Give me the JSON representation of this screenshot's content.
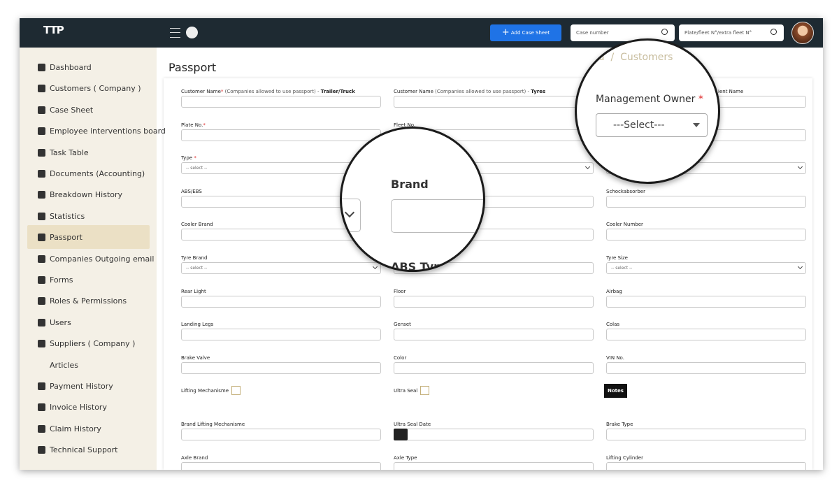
{
  "header": {
    "logo": "TTP",
    "add_button": "Add Case Sheet",
    "case_search_placeholder": "Case number",
    "plate_search_placeholder": "Plate/fleet N°/extra fleet N°"
  },
  "sidebar": {
    "items": [
      "Dashboard",
      "Customers ( Company )",
      "Case Sheet",
      "Employee interventions board",
      "Task Table",
      "Documents (Accounting)",
      "Breakdown History",
      "Statistics",
      "Passport",
      "Companies Outgoing email",
      "Forms",
      "Roles & Permissions",
      "Users",
      "Suppliers ( Company )",
      "Articles",
      "Payment History",
      "Invoice History",
      "Claim History",
      "Technical Support"
    ],
    "active": "Passport"
  },
  "page": {
    "title": "Passport"
  },
  "form": {
    "rows": [
      [
        {
          "kind": "input",
          "label": "Customer Name",
          "star": "*",
          "hint": " (Companies allowed to use passport) - ",
          "bold": "Trailer/Truck"
        },
        {
          "kind": "input",
          "label": "Customer Name",
          "hint": " (Companies allowed to use passport) - ",
          "bold": "Tyres"
        },
        {
          "kind": "input",
          "label": "ient Name"
        }
      ],
      [
        {
          "kind": "input",
          "label": "Plate No.",
          "star": "*"
        },
        {
          "kind": "input",
          "label": "Fleet No."
        },
        {
          "kind": "input"
        }
      ],
      [
        {
          "kind": "select",
          "label": "Type ",
          "star": "*",
          "placeholder": "-- select --"
        },
        {
          "kind": "select"
        },
        {
          "kind": "select"
        }
      ],
      [
        {
          "kind": "input",
          "label": "ABS/EBS"
        },
        {
          "kind": "input"
        },
        {
          "kind": "input",
          "label": "Schockabsorber"
        }
      ],
      [
        {
          "kind": "input",
          "label": "Cooler Brand"
        },
        {
          "kind": "input"
        },
        {
          "kind": "input",
          "label": "Cooler Number"
        }
      ],
      [
        {
          "kind": "select",
          "label": "Tyre Brand",
          "placeholder": "-- select --"
        },
        {
          "kind": "input"
        },
        {
          "kind": "select",
          "label": "Tyre Size",
          "placeholder": "-- select --"
        }
      ],
      [
        {
          "kind": "input",
          "label": "Rear Light"
        },
        {
          "kind": "input",
          "label": "Floor"
        },
        {
          "kind": "input",
          "label": "Airbag"
        }
      ],
      [
        {
          "kind": "input",
          "label": "Landing Legs"
        },
        {
          "kind": "input",
          "label": "Genset"
        },
        {
          "kind": "input",
          "label": "Colas"
        }
      ],
      [
        {
          "kind": "input",
          "label": "Brake Valve"
        },
        {
          "kind": "input",
          "label": "Color"
        },
        {
          "kind": "input",
          "label": "VIN No."
        }
      ],
      [
        {
          "kind": "check",
          "label": "Lifting Mechanisme"
        },
        {
          "kind": "check",
          "label": "Ultra Seal"
        },
        {
          "kind": "button",
          "label": "Notes"
        }
      ],
      [
        {
          "kind": "input",
          "label": "Brand Lifting Mechanisme"
        },
        {
          "kind": "date",
          "label": "Ultra Seal Date"
        },
        {
          "kind": "input",
          "label": "Brake Type"
        }
      ],
      [
        {
          "kind": "input",
          "label": "Axle Brand"
        },
        {
          "kind": "input",
          "label": "Axle Type"
        },
        {
          "kind": "input",
          "label": "Lifting Cylinder"
        }
      ]
    ]
  },
  "zoom": {
    "brand_label": "Brand",
    "abs_type_label": "ABS Typ",
    "owner_label": "Management Owner ",
    "owner_star": "*",
    "owner_placeholder": "---Select---",
    "breadcrumb_home": "oard",
    "breadcrumb_sep": "/",
    "breadcrumb_current": "Customers"
  }
}
